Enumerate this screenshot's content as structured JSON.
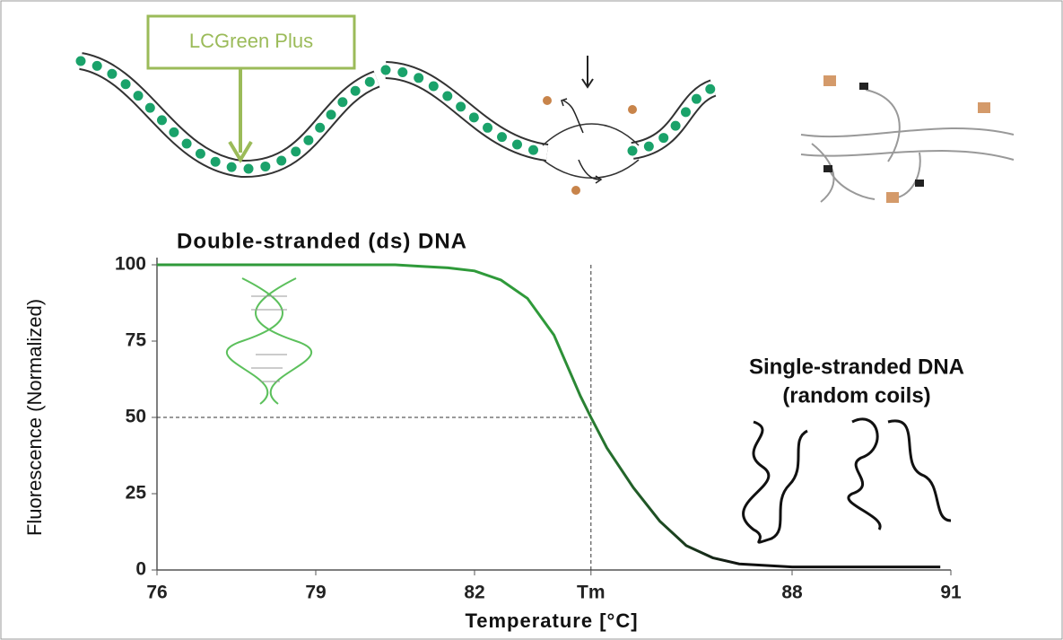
{
  "chart_data": {
    "type": "line",
    "label_box": "LCGreen Plus",
    "title": "Double-stranded (ds) DNA",
    "annotations": [
      "Single-stranded DNA",
      "(random coils)"
    ],
    "xlabel": "Temperature  [°C]",
    "ylabel": "Fluorescence (Normalized)",
    "x": [
      76,
      77,
      78,
      79,
      80,
      80.5,
      81,
      81.5,
      82,
      82.5,
      83,
      83.5,
      84,
      84.2,
      84.5,
      85,
      85.5,
      86,
      86.5,
      87,
      88,
      89,
      90,
      90.8
    ],
    "series": [
      {
        "color": "#2f9a3a",
        "values": [
          100,
          100,
          100,
          100,
          100,
          100,
          99.5,
          99,
          98,
          95,
          89,
          77,
          57,
          50,
          40,
          27,
          16,
          8,
          4,
          2,
          1,
          1,
          1,
          1
        ]
      }
    ],
    "xlim": [
      76,
      91
    ],
    "xticks": [
      76,
      79,
      82,
      {
        "value": 84.2,
        "label": "Tm"
      },
      88,
      91
    ],
    "ylim": [
      0,
      100
    ],
    "yticks": [
      0,
      25,
      50,
      75,
      100
    ],
    "ref_x": 84.2,
    "ref_y": 50
  }
}
